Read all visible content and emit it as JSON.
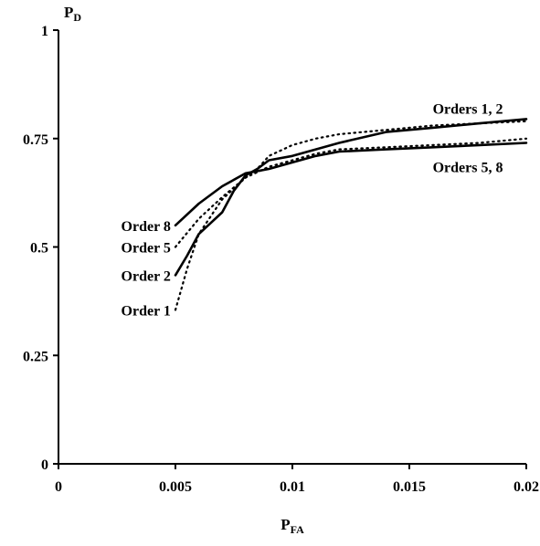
{
  "chart_data": {
    "type": "line",
    "xlabel": "P",
    "xlabel_sub": "FA",
    "ylabel": "P",
    "ylabel_sub": "D",
    "xlim": [
      0,
      0.02
    ],
    "ylim": [
      0,
      1
    ],
    "x_ticks": [
      {
        "value": 0,
        "label": "0"
      },
      {
        "value": 0.005,
        "label": "0.005"
      },
      {
        "value": 0.01,
        "label": "0.01"
      },
      {
        "value": 0.015,
        "label": "0.015"
      },
      {
        "value": 0.02,
        "label": "0.02"
      }
    ],
    "y_ticks": [
      {
        "value": 0,
        "label": "0"
      },
      {
        "value": 0.25,
        "label": "0.25"
      },
      {
        "value": 0.5,
        "label": "0.5"
      },
      {
        "value": 0.75,
        "label": "0.75"
      },
      {
        "value": 1,
        "label": "1"
      }
    ],
    "grid": false,
    "series": [
      {
        "name": "Order 1",
        "style": "dotted",
        "x": [
          0.005,
          0.0055,
          0.006,
          0.007,
          0.008,
          0.0085,
          0.009,
          0.01,
          0.011,
          0.012,
          0.014,
          0.016,
          0.018,
          0.02
        ],
        "y": [
          0.355,
          0.45,
          0.53,
          0.61,
          0.66,
          0.68,
          0.71,
          0.735,
          0.75,
          0.76,
          0.77,
          0.78,
          0.785,
          0.79
        ]
      },
      {
        "name": "Order 2",
        "style": "solid",
        "x": [
          0.005,
          0.0055,
          0.006,
          0.0065,
          0.007,
          0.0075,
          0.008,
          0.0085,
          0.009,
          0.01,
          0.011,
          0.012,
          0.014,
          0.016,
          0.018,
          0.02
        ],
        "y": [
          0.435,
          0.48,
          0.53,
          0.555,
          0.58,
          0.63,
          0.665,
          0.68,
          0.7,
          0.71,
          0.725,
          0.74,
          0.765,
          0.775,
          0.785,
          0.795
        ]
      },
      {
        "name": "Order 5",
        "style": "dotted",
        "x": [
          0.005,
          0.006,
          0.007,
          0.008,
          0.009,
          0.01,
          0.011,
          0.012,
          0.014,
          0.016,
          0.018,
          0.02
        ],
        "y": [
          0.5,
          0.565,
          0.615,
          0.66,
          0.685,
          0.7,
          0.715,
          0.725,
          0.73,
          0.735,
          0.74,
          0.75
        ]
      },
      {
        "name": "Order 8",
        "style": "solid",
        "x": [
          0.005,
          0.006,
          0.007,
          0.008,
          0.009,
          0.01,
          0.011,
          0.012,
          0.014,
          0.016,
          0.018,
          0.02
        ],
        "y": [
          0.55,
          0.6,
          0.64,
          0.67,
          0.68,
          0.695,
          0.71,
          0.72,
          0.725,
          0.73,
          0.735,
          0.74
        ]
      }
    ],
    "annotations": [
      {
        "text": "Order 8",
        "x": 0.0048,
        "y": 0.55,
        "anchor": "end"
      },
      {
        "text": "Order 5",
        "x": 0.0048,
        "y": 0.5,
        "anchor": "end"
      },
      {
        "text": "Order 2",
        "x": 0.0048,
        "y": 0.435,
        "anchor": "end"
      },
      {
        "text": "Order 1",
        "x": 0.0048,
        "y": 0.355,
        "anchor": "end"
      },
      {
        "text": "Orders 1, 2",
        "x": 0.0175,
        "y": 0.82,
        "anchor": "middle"
      },
      {
        "text": "Orders 5, 8",
        "x": 0.0175,
        "y": 0.685,
        "anchor": "middle"
      }
    ]
  }
}
